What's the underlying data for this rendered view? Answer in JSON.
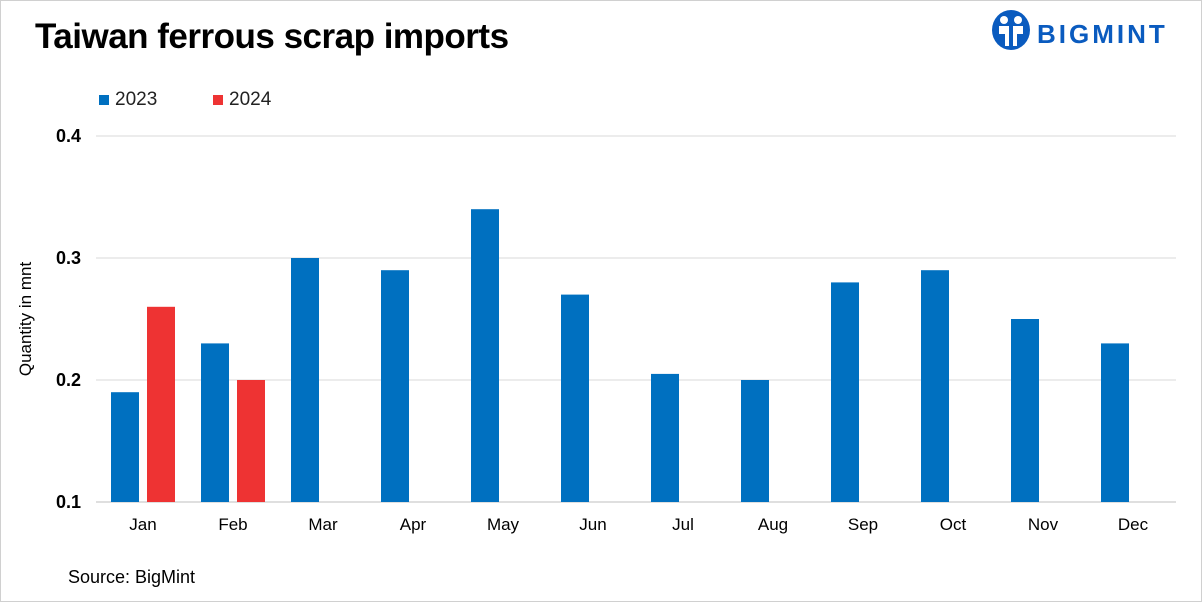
{
  "title": "Taiwan ferrous scrap imports",
  "brand": {
    "name": "BIGMINT",
    "color": "#0a5bbf"
  },
  "source": "Source: BigMint",
  "colors": {
    "series_2023": "#0070c0",
    "series_2024": "#ee3333",
    "grid": "#d9d9d9"
  },
  "chart_data": {
    "type": "bar",
    "title": "Taiwan ferrous scrap imports",
    "xlabel": "",
    "ylabel": "Quantity in mnt",
    "categories": [
      "Jan",
      "Feb",
      "Mar",
      "Apr",
      "May",
      "Jun",
      "Jul",
      "Aug",
      "Sep",
      "Oct",
      "Nov",
      "Dec"
    ],
    "series": [
      {
        "name": "2023",
        "color": "#0070c0",
        "values": [
          0.19,
          0.23,
          0.3,
          0.29,
          0.34,
          0.27,
          0.205,
          0.2,
          0.28,
          0.29,
          0.25,
          0.23
        ]
      },
      {
        "name": "2024",
        "color": "#ee3333",
        "values": [
          0.26,
          0.2,
          null,
          null,
          null,
          null,
          null,
          null,
          null,
          null,
          null,
          null
        ]
      }
    ],
    "ylim": [
      0.1,
      0.4
    ],
    "yticks": [
      "0.1",
      "0.2",
      "0.3",
      "0.4"
    ],
    "grid": true,
    "legend": "top-left"
  }
}
